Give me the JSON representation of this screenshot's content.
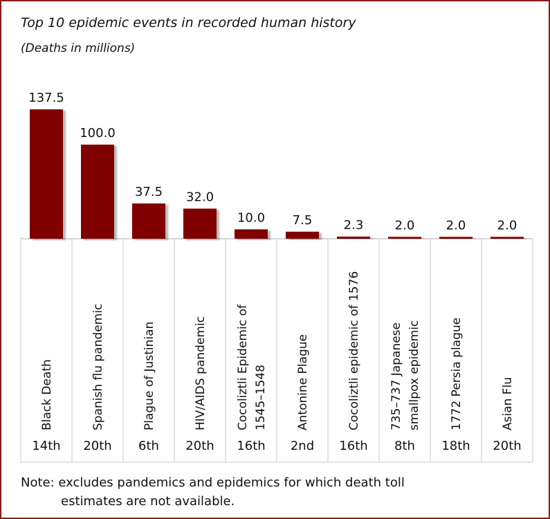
{
  "chart_data": {
    "type": "bar",
    "title": "Top 10 epidemic events in recorded human history",
    "subtitle": "(Deaths in millions)",
    "categories": [
      "Black Death",
      "Spanish flu pandemic",
      "Plague of Justinian",
      "HIV/AIDS pandemic",
      "Cocoliztli Epidemic of 1545–1548",
      "Antonine Plague",
      "Cocoliztli epidemic of 1576",
      "735–737 Japanese smallpox epidemic",
      "1772 Persia plague",
      "Asian Flu"
    ],
    "category_label_lines": [
      [
        "Black Death"
      ],
      [
        "Spanish flu pandemic"
      ],
      [
        "Plague of Justinian"
      ],
      [
        "HIV/AIDS pandemic"
      ],
      [
        "Cocoliztli Epidemic of",
        "1545–1548"
      ],
      [
        "Antonine Plague"
      ],
      [
        "Cocoliztli epidemic of 1576"
      ],
      [
        "735–737 Japanese",
        "smallpox epidemic"
      ],
      [
        "1772 Persia plague"
      ],
      [
        "Asian Flu"
      ]
    ],
    "centuries": [
      "14th",
      "20th",
      "6th",
      "20th",
      "16th",
      "2nd",
      "16th",
      "8th",
      "18th",
      "20th"
    ],
    "values": [
      137.5,
      100.0,
      37.5,
      32.0,
      10.0,
      7.5,
      2.3,
      2.0,
      2.0,
      2.0
    ],
    "value_labels": [
      "137.5",
      "100.0",
      "37.5",
      "32.0",
      "10.0",
      "7.5",
      "2.3",
      "2.0",
      "2.0",
      "2.0"
    ],
    "ylim": [
      0,
      137.5
    ],
    "bar_color": "#800000",
    "frame_color": "#8b1a1a",
    "grid": false,
    "legend": "none"
  },
  "note": {
    "line1": "Note: excludes pandemics and epidemics for which death toll",
    "line2": "estimates are not available."
  }
}
